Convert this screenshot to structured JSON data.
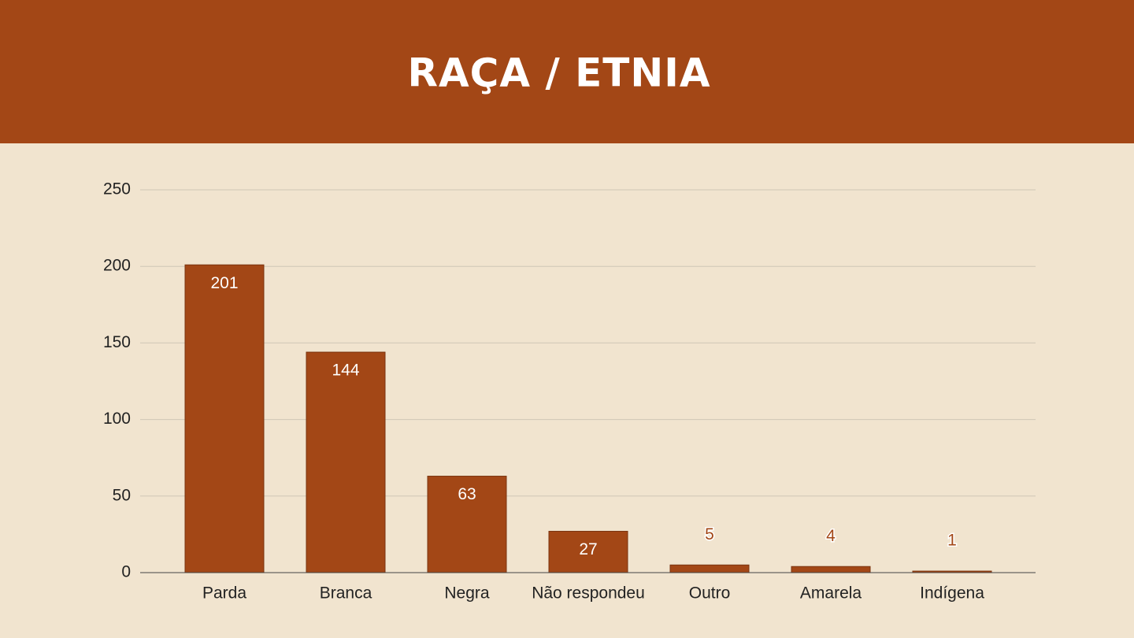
{
  "chart_data": {
    "type": "bar",
    "title": "RAÇA / ETNIA",
    "categories": [
      "Parda",
      "Branca",
      "Negra",
      "Não respondeu",
      "Outro",
      "Amarela",
      "Indígena"
    ],
    "values": [
      201,
      144,
      63,
      27,
      5,
      4,
      1
    ],
    "color": "#a34716",
    "ylim": [
      0,
      250
    ],
    "yticks": [
      0,
      50,
      100,
      150,
      200,
      250
    ],
    "grid": true
  }
}
